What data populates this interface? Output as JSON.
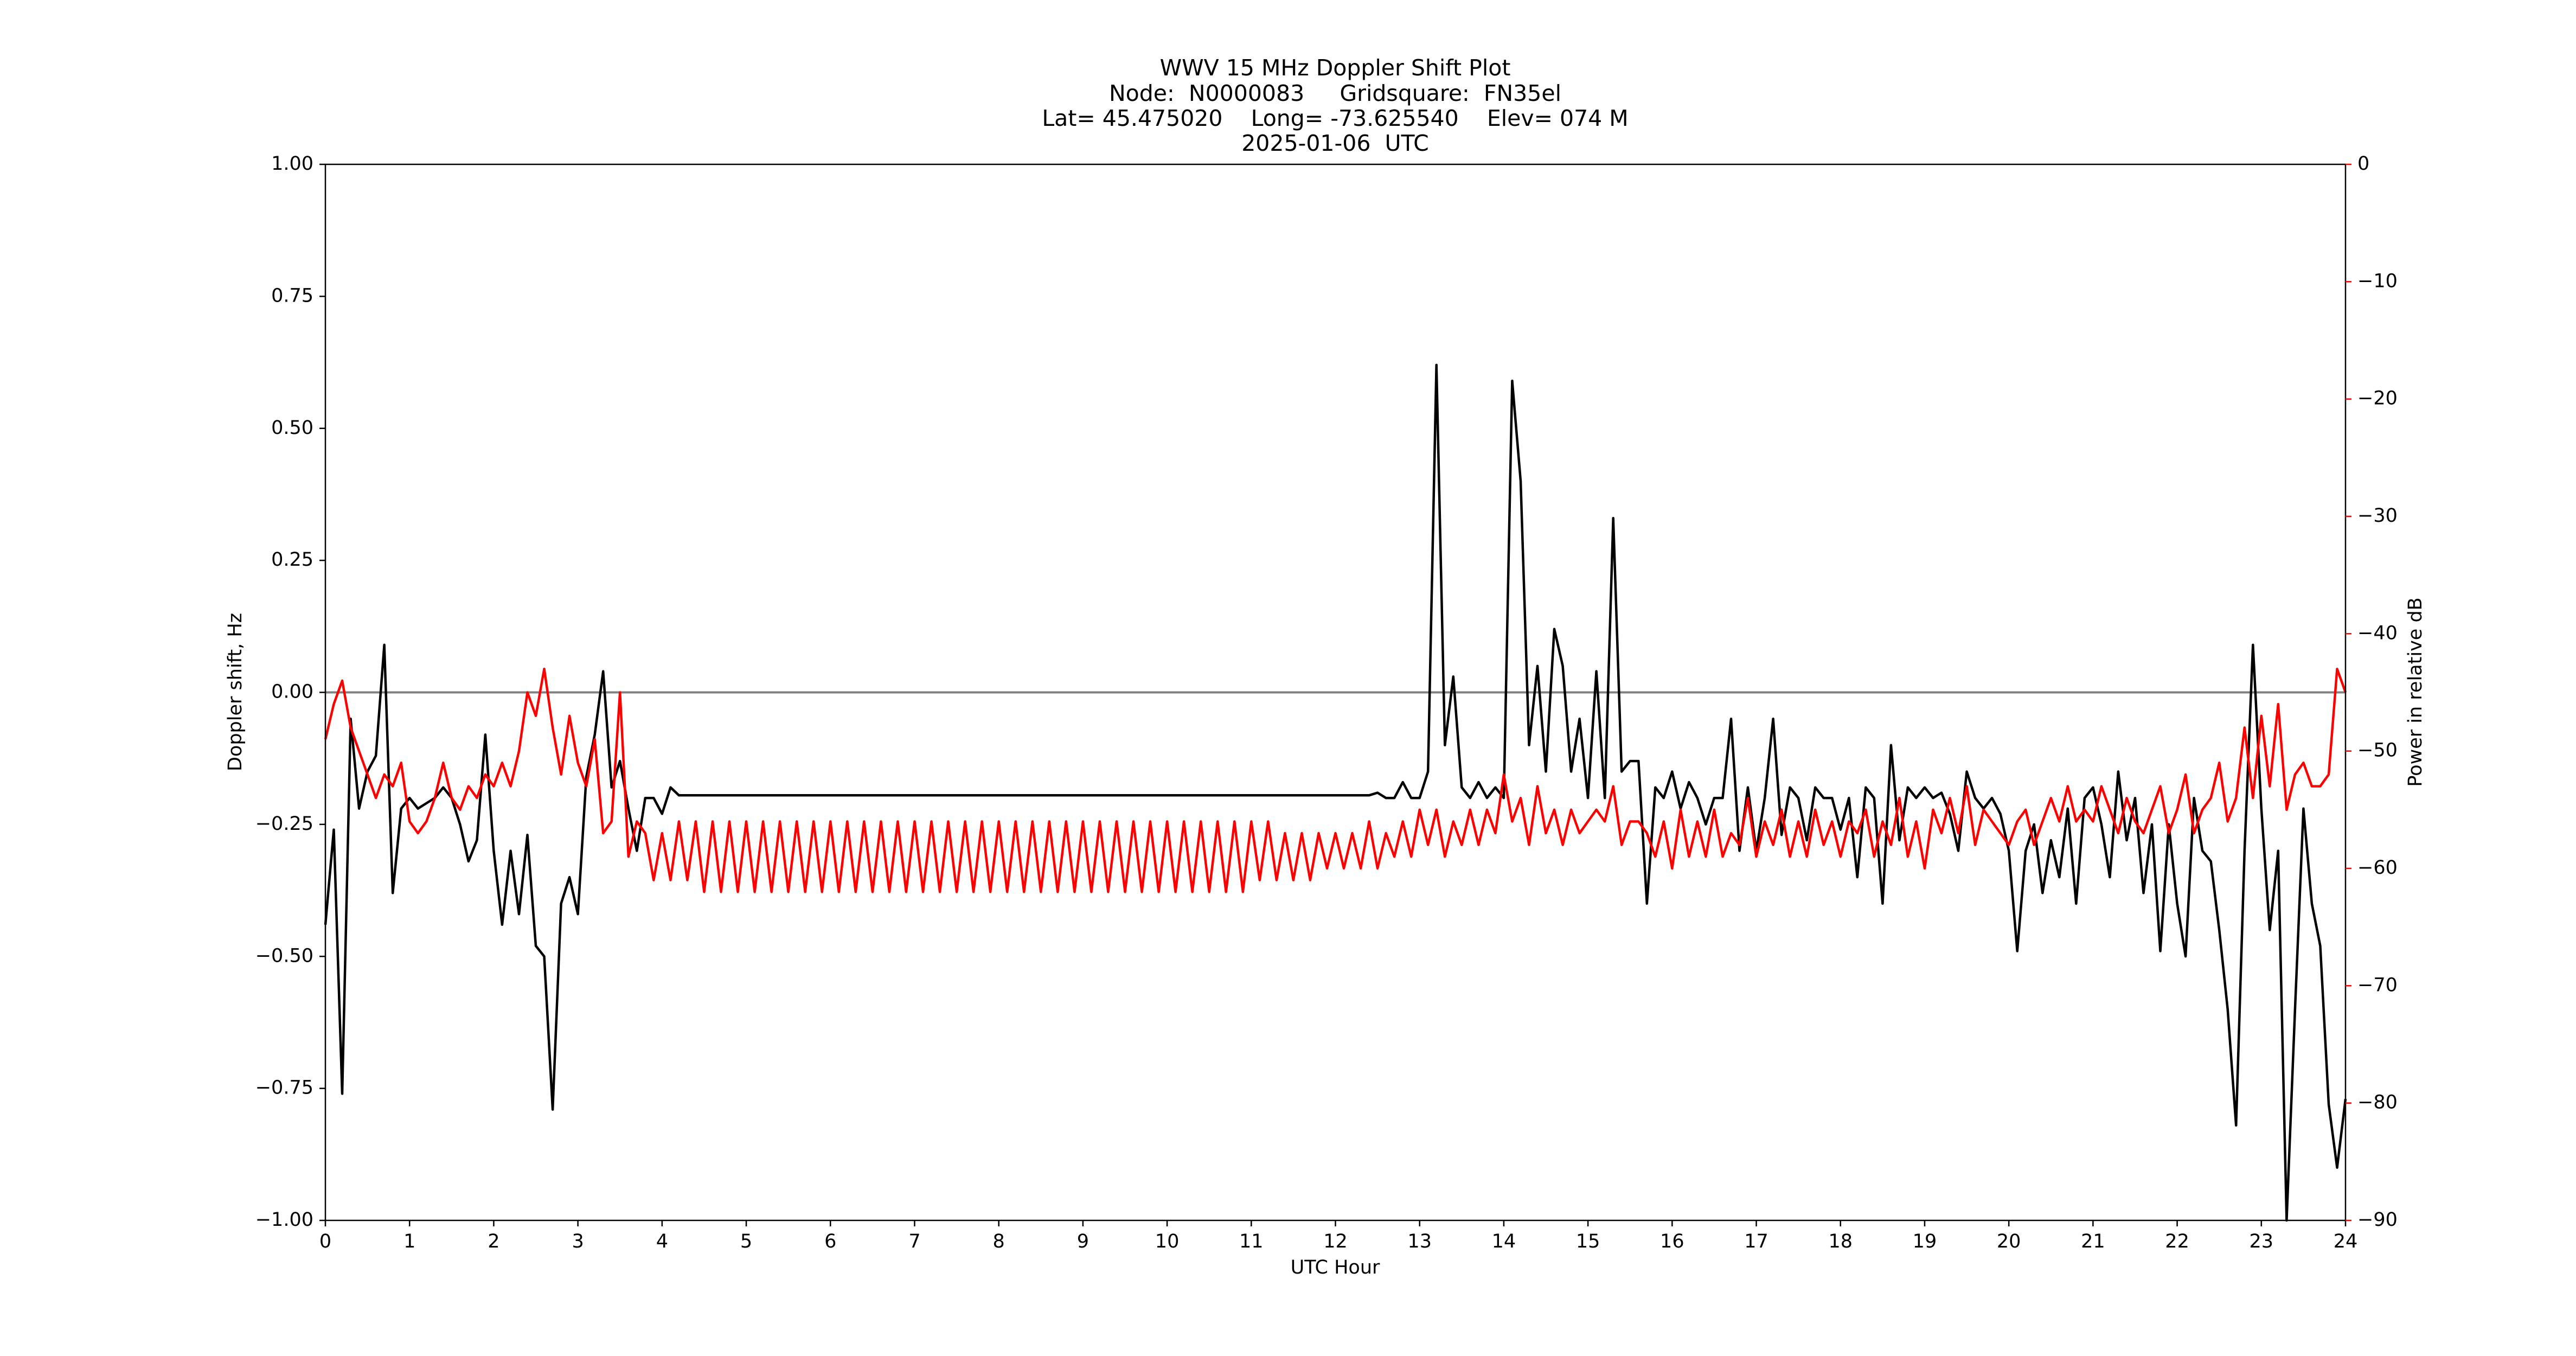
{
  "chart_data": {
    "type": "line",
    "title": [
      "WWV 15 MHz Doppler Shift Plot",
      "Node:  N0000083     Gridsquare:  FN35el",
      "Lat= 45.475020    Long= -73.625540    Elev= 074 M",
      "2025-01-06  UTC"
    ],
    "x_label": "UTC Hour",
    "y_label": "Doppler shift, Hz",
    "y2_label": "Power in relative dB",
    "xlim": [
      0,
      24
    ],
    "xticks": [
      0,
      1,
      2,
      3,
      4,
      5,
      6,
      7,
      8,
      9,
      10,
      11,
      12,
      13,
      14,
      15,
      16,
      17,
      18,
      19,
      20,
      21,
      22,
      23,
      24
    ],
    "ylim": [
      -1,
      1
    ],
    "yticks": [
      {
        "value": -1,
        "label": "−1.00"
      },
      {
        "value": -0.75,
        "label": "−0.75"
      },
      {
        "value": -0.5,
        "label": "−0.50"
      },
      {
        "value": -0.25,
        "label": "−0.25"
      },
      {
        "value": 0,
        "label": "0.00"
      },
      {
        "value": 0.25,
        "label": "0.25"
      },
      {
        "value": 0.5,
        "label": "0.50"
      },
      {
        "value": 0.75,
        "label": "0.75"
      },
      {
        "value": 1,
        "label": "1.00"
      }
    ],
    "y2lim": [
      -90,
      0
    ],
    "y2ticks": [
      {
        "value": -90,
        "label": "−90"
      },
      {
        "value": -80,
        "label": "−80"
      },
      {
        "value": -70,
        "label": "−70"
      },
      {
        "value": -60,
        "label": "−60"
      },
      {
        "value": -50,
        "label": "−50"
      },
      {
        "value": -40,
        "label": "−40"
      },
      {
        "value": -30,
        "label": "−30"
      },
      {
        "value": -20,
        "label": "−20"
      },
      {
        "value": -10,
        "label": "−10"
      },
      0
    ],
    "y2_color": "#ff0000",
    "reference_line": {
      "value": 0,
      "color": "#808080"
    },
    "x": [
      0,
      0.1,
      0.2,
      0.3,
      0.4,
      0.5,
      0.6,
      0.7,
      0.8,
      0.9,
      1,
      1.1,
      1.2,
      1.3,
      1.4,
      1.5,
      1.6,
      1.7,
      1.8,
      1.9,
      2,
      2.1,
      2.2,
      2.3,
      2.4,
      2.5,
      2.6,
      2.7,
      2.8,
      2.9,
      3,
      3.1,
      3.2,
      3.3,
      3.4,
      3.5,
      3.6,
      3.7,
      3.8,
      3.9,
      4,
      4.1,
      4.2,
      4.3,
      4.4,
      4.5,
      4.6,
      4.7,
      4.8,
      4.9,
      5,
      5.1,
      5.2,
      5.3,
      5.4,
      5.5,
      5.6,
      5.7,
      5.8,
      5.9,
      6,
      6.1,
      6.2,
      6.3,
      6.4,
      6.5,
      6.6,
      6.7,
      6.8,
      6.9,
      7,
      7.1,
      7.2,
      7.3,
      7.4,
      7.5,
      7.6,
      7.7,
      7.8,
      7.9,
      8,
      8.1,
      8.2,
      8.3,
      8.4,
      8.5,
      8.6,
      8.7,
      8.8,
      8.9,
      9,
      9.1,
      9.2,
      9.3,
      9.4,
      9.5,
      9.6,
      9.7,
      9.8,
      9.9,
      10,
      10.1,
      10.2,
      10.3,
      10.4,
      10.5,
      10.6,
      10.7,
      10.8,
      10.9,
      11,
      11.1,
      11.2,
      11.3,
      11.4,
      11.5,
      11.6,
      11.7,
      11.8,
      11.9,
      12,
      12.1,
      12.2,
      12.3,
      12.4,
      12.5,
      12.6,
      12.7,
      12.8,
      12.9,
      13,
      13.1,
      13.2,
      13.3,
      13.4,
      13.5,
      13.6,
      13.7,
      13.8,
      13.9,
      14,
      14.1,
      14.2,
      14.3,
      14.4,
      14.5,
      14.6,
      14.7,
      14.8,
      14.9,
      15,
      15.1,
      15.2,
      15.3,
      15.4,
      15.5,
      15.6,
      15.7,
      15.8,
      15.9,
      16,
      16.1,
      16.2,
      16.3,
      16.4,
      16.5,
      16.6,
      16.7,
      16.8,
      16.9,
      17,
      17.1,
      17.2,
      17.3,
      17.4,
      17.5,
      17.6,
      17.7,
      17.8,
      17.9,
      18,
      18.1,
      18.2,
      18.3,
      18.4,
      18.5,
      18.6,
      18.7,
      18.8,
      18.9,
      19,
      19.1,
      19.2,
      19.3,
      19.4,
      19.5,
      19.6,
      19.7,
      19.8,
      19.9,
      20,
      20.1,
      20.2,
      20.3,
      20.4,
      20.5,
      20.6,
      20.7,
      20.8,
      20.9,
      21,
      21.1,
      21.2,
      21.3,
      21.4,
      21.5,
      21.6,
      21.7,
      21.8,
      21.9,
      22,
      22.1,
      22.2,
      22.3,
      22.4,
      22.5,
      22.6,
      22.7,
      22.8,
      22.9,
      23,
      23.1,
      23.2,
      23.3,
      23.4,
      23.5,
      23.6,
      23.7,
      23.8,
      23.9,
      24
    ],
    "series": [
      {
        "color": "#000000",
        "values": [
          -0.44,
          -0.26,
          -0.76,
          -0.05,
          -0.22,
          -0.15,
          -0.12,
          0.09,
          -0.38,
          -0.22,
          -0.2,
          -0.22,
          -0.21,
          -0.2,
          -0.18,
          -0.2,
          -0.25,
          -0.32,
          -0.28,
          -0.08,
          -0.3,
          -0.44,
          -0.3,
          -0.42,
          -0.27,
          -0.48,
          -0.5,
          -0.79,
          -0.4,
          -0.35,
          -0.42,
          -0.16,
          -0.08,
          0.04,
          -0.18,
          -0.13,
          -0.22,
          -0.3,
          -0.2,
          -0.2,
          -0.23,
          -0.18,
          -0.195,
          -0.195,
          -0.195,
          -0.195,
          -0.195,
          -0.195,
          -0.195,
          -0.195,
          -0.195,
          -0.195,
          -0.195,
          -0.195,
          -0.195,
          -0.195,
          -0.195,
          -0.195,
          -0.195,
          -0.195,
          -0.195,
          -0.195,
          -0.195,
          -0.195,
          -0.195,
          -0.195,
          -0.195,
          -0.195,
          -0.195,
          -0.195,
          -0.195,
          -0.195,
          -0.195,
          -0.195,
          -0.195,
          -0.195,
          -0.195,
          -0.195,
          -0.195,
          -0.195,
          -0.195,
          -0.195,
          -0.195,
          -0.195,
          -0.195,
          -0.195,
          -0.195,
          -0.195,
          -0.195,
          -0.195,
          -0.195,
          -0.195,
          -0.195,
          -0.195,
          -0.195,
          -0.195,
          -0.195,
          -0.195,
          -0.195,
          -0.195,
          -0.195,
          -0.195,
          -0.195,
          -0.195,
          -0.195,
          -0.195,
          -0.195,
          -0.195,
          -0.195,
          -0.195,
          -0.195,
          -0.195,
          -0.195,
          -0.195,
          -0.195,
          -0.195,
          -0.195,
          -0.195,
          -0.195,
          -0.195,
          -0.195,
          -0.195,
          -0.195,
          -0.195,
          -0.195,
          -0.19,
          -0.2,
          -0.2,
          -0.17,
          -0.2,
          -0.2,
          -0.15,
          0.62,
          -0.1,
          0.03,
          -0.18,
          -0.2,
          -0.17,
          -0.2,
          -0.18,
          -0.2,
          0.59,
          0.4,
          -0.1,
          0.05,
          -0.15,
          0.12,
          0.05,
          -0.15,
          -0.05,
          -0.2,
          0.04,
          -0.2,
          0.33,
          -0.15,
          -0.13,
          -0.13,
          -0.4,
          -0.18,
          -0.2,
          -0.15,
          -0.22,
          -0.17,
          -0.2,
          -0.25,
          -0.2,
          -0.2,
          -0.05,
          -0.3,
          -0.18,
          -0.3,
          -0.2,
          -0.05,
          -0.27,
          -0.18,
          -0.2,
          -0.28,
          -0.18,
          -0.2,
          -0.2,
          -0.26,
          -0.2,
          -0.35,
          -0.18,
          -0.2,
          -0.4,
          -0.1,
          -0.28,
          -0.18,
          -0.2,
          -0.18,
          -0.2,
          -0.19,
          -0.23,
          -0.3,
          -0.15,
          -0.2,
          -0.22,
          -0.2,
          -0.23,
          -0.3,
          -0.49,
          -0.3,
          -0.25,
          -0.38,
          -0.28,
          -0.35,
          -0.22,
          -0.4,
          -0.2,
          -0.18,
          -0.25,
          -0.35,
          -0.15,
          -0.28,
          -0.2,
          -0.38,
          -0.25,
          -0.49,
          -0.25,
          -0.4,
          -0.5,
          -0.2,
          -0.3,
          -0.32,
          -0.45,
          -0.6,
          -0.82,
          -0.3,
          0.09,
          -0.22,
          -0.45,
          -0.3,
          -1.0,
          -0.6,
          -0.22,
          -0.4,
          -0.48,
          -0.78,
          -0.9,
          -0.77
        ]
      },
      {
        "color": "#ff0000",
        "axis": "y2",
        "values": [
          -49,
          -46,
          -44,
          -48,
          -50,
          -52,
          -54,
          -52,
          -53,
          -51,
          -56,
          -57,
          -56,
          -54,
          -51,
          -54,
          -55,
          -53,
          -54,
          -52,
          -53,
          -51,
          -53,
          -50,
          -45,
          -47,
          -43,
          -48,
          -52,
          -47,
          -51,
          -53,
          -49,
          -57,
          -56,
          -45,
          -59,
          -56,
          -57,
          -61,
          -57,
          -61,
          -56,
          -61,
          -56,
          -62,
          -56,
          -62,
          -56,
          -62,
          -56,
          -62,
          -56,
          -62,
          -56,
          -62,
          -56,
          -62,
          -56,
          -62,
          -56,
          -62,
          -56,
          -62,
          -56,
          -62,
          -56,
          -62,
          -56,
          -62,
          -56,
          -62,
          -56,
          -62,
          -56,
          -62,
          -56,
          -62,
          -56,
          -62,
          -56,
          -62,
          -56,
          -62,
          -56,
          -62,
          -56,
          -62,
          -56,
          -62,
          -56,
          -62,
          -56,
          -62,
          -56,
          -62,
          -56,
          -62,
          -56,
          -62,
          -56,
          -62,
          -56,
          -62,
          -56,
          -62,
          -56,
          -62,
          -56,
          -62,
          -56,
          -61,
          -56,
          -61,
          -57,
          -61,
          -57,
          -61,
          -57,
          -60,
          -57,
          -60,
          -57,
          -60,
          -56,
          -60,
          -57,
          -59,
          -56,
          -59,
          -55,
          -58,
          -55,
          -59,
          -56,
          -58,
          -55,
          -58,
          -55,
          -57,
          -52,
          -56,
          -54,
          -58,
          -53,
          -57,
          -55,
          -58,
          -55,
          -57,
          -56,
          -55,
          -56,
          -53,
          -58,
          -56,
          -56,
          -57,
          -59,
          -56,
          -60,
          -55,
          -59,
          -56,
          -59,
          -55,
          -59,
          -57,
          -58,
          -54,
          -59,
          -56,
          -58,
          -55,
          -59,
          -56,
          -59,
          -55,
          -58,
          -56,
          -59,
          -56,
          -57,
          -55,
          -59,
          -56,
          -58,
          -54,
          -59,
          -56,
          -60,
          -55,
          -57,
          -54,
          -57,
          -53,
          -58,
          -55,
          -56,
          -57,
          -58,
          -56,
          -55,
          -58,
          -56,
          -54,
          -56,
          -53,
          -56,
          -55,
          -56,
          -53,
          -55,
          -57,
          -54,
          -56,
          -57,
          -55,
          -53,
          -57,
          -55,
          -52,
          -57,
          -55,
          -54,
          -51,
          -56,
          -54,
          -48,
          -54,
          -47,
          -53,
          -46,
          -55,
          -52,
          -51,
          -53,
          -53,
          -52,
          -43,
          -45
        ]
      }
    ]
  }
}
